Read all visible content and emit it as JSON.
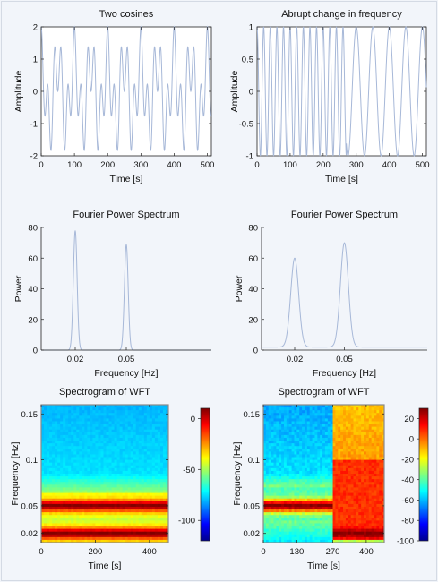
{
  "line_color": "#a7b8d8",
  "chart_data": [
    {
      "id": "c1",
      "type": "line",
      "title": "Two cosines",
      "xlabel": "Time [s]",
      "ylabel": "Amplitude",
      "xlim": [
        0,
        512
      ],
      "ylim": [
        -2,
        2
      ],
      "xticks": [
        0,
        100,
        200,
        300,
        400,
        500
      ],
      "yticks": [
        -2,
        -1,
        0,
        1,
        2
      ],
      "series": [
        {
          "formula": "cos(2π·0.02·t) + cos(2π·0.05·t)",
          "f1": 0.02,
          "f2": 0.05
        }
      ]
    },
    {
      "id": "c2",
      "type": "line",
      "title": "Abrupt change in frequency",
      "xlabel": "Time [s]",
      "ylabel": "Amplitude",
      "xlim": [
        0,
        512
      ],
      "ylim": [
        -1,
        1
      ],
      "xticks": [
        0,
        100,
        200,
        300,
        400,
        500
      ],
      "yticks": [
        -1,
        -0.5,
        0,
        0.5,
        1
      ],
      "series": [
        {
          "f_before": 0.05,
          "f_after": 0.02,
          "change_t": 270
        }
      ]
    },
    {
      "id": "c3",
      "type": "line",
      "title": "Fourier Power Spectrum",
      "xlabel": "Frequency [Hz]",
      "ylabel": "Power",
      "xlim": [
        0,
        0.1
      ],
      "ylim": [
        0,
        80
      ],
      "xticks": [
        0.02,
        0.05
      ],
      "yticks": [
        0,
        20,
        40,
        60,
        80
      ],
      "peaks": [
        {
          "f": 0.02,
          "power": 78
        },
        {
          "f": 0.05,
          "power": 69
        }
      ]
    },
    {
      "id": "c4",
      "type": "line",
      "title": "Fourier Power Spectrum",
      "xlabel": "Frequency [Hz]",
      "ylabel": "Power",
      "xlim": [
        0,
        0.1
      ],
      "ylim": [
        0,
        80
      ],
      "xticks": [
        0.02,
        0.05
      ],
      "yticks": [
        0,
        20,
        40,
        60,
        80
      ],
      "peaks": [
        {
          "f": 0.02,
          "power": 58
        },
        {
          "f": 0.05,
          "power": 68
        }
      ]
    },
    {
      "id": "c5",
      "type": "heatmap",
      "title": "Spectrogram of WFT",
      "xlabel": "Time [s]",
      "ylabel": "Frequency [Hz]",
      "xlim": [
        0,
        470
      ],
      "ylim": [
        0.01,
        0.16
      ],
      "xticks": [
        0,
        200,
        400
      ],
      "yticks": [
        0.02,
        0.05,
        0.1,
        0.15
      ],
      "colorbar": {
        "min": -120,
        "max": 10,
        "ticks": [
          0,
          -50,
          -100
        ]
      }
    },
    {
      "id": "c6",
      "type": "heatmap",
      "title": "Spectrogram of WFT",
      "xlabel": "Time [s]",
      "ylabel": "Frequency [Hz]",
      "xlim": [
        0,
        470
      ],
      "ylim": [
        0.01,
        0.16
      ],
      "xticks": [
        0,
        130,
        270,
        400
      ],
      "yticks": [
        0.02,
        0.05,
        0.1,
        0.15
      ],
      "change_t": 270,
      "colorbar": {
        "min": -100,
        "max": 30,
        "ticks": [
          20,
          0,
          -20,
          -40,
          -60,
          -80,
          -100
        ]
      }
    }
  ]
}
